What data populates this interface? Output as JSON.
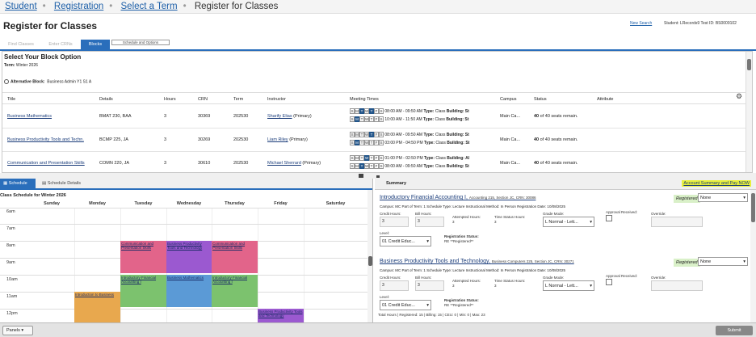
{
  "breadcrumb": {
    "items": [
      "Student",
      "Registration",
      "Select a Term",
      "Register for Classes"
    ]
  },
  "header": {
    "title": "Register for Classes",
    "new_search": "New Search",
    "student": "Student: LRecords9 Test   ID: BS0009102"
  },
  "tabs": [
    "Find Classes",
    "Enter CRNs",
    "Blocks",
    "Schedule and Options"
  ],
  "block": {
    "title": "Select Your Block Option",
    "term_label": "Term:",
    "term_value": "Winter 2026",
    "alt_label": "Alternative Block:",
    "alt_value": "Business Admin Y1 S1 A",
    "columns": [
      "Title",
      "Details",
      "Hours",
      "CRN",
      "Term",
      "Instructor",
      "Meeting Times",
      "Campus",
      "Status",
      "Attribute"
    ],
    "rows": [
      {
        "title": "Business Mathematics",
        "details": "BMAT 230, BAA",
        "hours": "3",
        "crn": "30369",
        "term": "202530",
        "instructor": "Sharify Elias",
        "role": "(Primary)",
        "m1": "08:00 AM - 09:50 AM",
        "b1": "Building: St",
        "m2": "10:00 AM - 11:50 AM",
        "b2": "Building: St",
        "campus": "Main Ca...",
        "status_num": "40",
        "status_text": " of 40 seats remain."
      },
      {
        "title": "Business Productivity Tools and Techn.",
        "details": "BCMP 225, JA",
        "hours": "3",
        "crn": "30269",
        "term": "202530",
        "instructor": "Liam Riley",
        "role": "(Primary)",
        "m1": "08:00 AM - 09:50 AM",
        "b1": "Building: St",
        "m2": "03:00 PM - 04:50 PM",
        "b2": "Building: St",
        "campus": "Main Ca...",
        "status_num": "40",
        "status_text": " of 40 seats remain."
      },
      {
        "title": "Communication and Presentation Skills",
        "details": "COMN 220, JA",
        "hours": "3",
        "crn": "30610",
        "term": "202530",
        "instructor": "Michael Sherrard",
        "role": "(Primary)",
        "m1": "01:00 PM - 02:50 PM",
        "b1": "Building: Al",
        "m2": "08:00 AM - 09:50 AM",
        "b2": "Building: St",
        "campus": "Main Ca...",
        "status_num": "40",
        "status_text": " of 40 seats remain."
      }
    ],
    "type_label": "Type:",
    "type_value": "Class",
    "days": [
      "S",
      "M",
      "T",
      "W",
      "T",
      "F",
      "S"
    ]
  },
  "schedule": {
    "tab_on": "Schedule",
    "tab_off": "Schedule Details",
    "title": "Class Schedule for Winter 2026",
    "days": [
      "Sunday",
      "Monday",
      "Tuesday",
      "Wednesday",
      "Thursday",
      "Friday",
      "Saturday"
    ],
    "hours": [
      "6am",
      "7am",
      "8am",
      "9am",
      "10am",
      "11am",
      "12pm"
    ],
    "events": {
      "comm": "Communication and Presentation Skills",
      "bpt": "Business Productivity Tools and Technology",
      "ifa": "Introductory Financial Accounting I",
      "bm": "Business Mathematics",
      "ib": "Introduction to Business"
    }
  },
  "summary": {
    "label": "Summary",
    "link": "Account Summary and Pay NOW",
    "cards": [
      {
        "title": "Introductory Financial Accounting I,",
        "sub": "Accounting 215, Section JC, CRN: 30086",
        "reg": "Registered",
        "action": "None",
        "line": "Campus: MC  Part of Term: 1  Schedule Type: Lecture  Instructional Method: In Person  Registration Date: 10/08/2025",
        "credit": "Credit Hours:",
        "bill": "Bill Hours:",
        "att": "Attempted Hours:",
        "att_v": "3",
        "tsh": "Time Status Hours:",
        "tsh_v": "3",
        "gm": "Grade Mode:",
        "gm_v": "L Normal - Lett...",
        "ar": "Approval Received:",
        "ov": "Override:",
        "level": "Level:",
        "level_v": "01 Credit Educ...",
        "rs": "Registration Status:",
        "rs_v": "RE **Registered**",
        "cv": "3",
        "bv": "3"
      },
      {
        "title": "Business Productivity Tools and Technology,",
        "sub": "Business Computers 225, Section JC, CRN: 30271",
        "reg": "Registered",
        "action": "None",
        "line": "Campus: MC  Part of Term: 1  Schedule Type: Lecture  Instructional Method: In Person  Registration Date: 10/08/2025",
        "credit": "Credit Hours:",
        "bill": "Bill Hours:",
        "att": "Attempted Hours:",
        "att_v": "3",
        "tsh": "Time Status Hours:",
        "tsh_v": "3",
        "gm": "Grade Mode:",
        "gm_v": "L Normal - Lett...",
        "ar": "Approval Received:",
        "ov": "Override:",
        "level": "Level:",
        "level_v": "01 Credit Educ...",
        "rs": "Registration Status:",
        "rs_v": "RE **Registered**",
        "cv": "3",
        "bv": "3"
      }
    ],
    "totals": "Total Hours | Registered: 15 | Billing: 15 | CEU: 0 | Min: 0 | Max: 23"
  },
  "footer": {
    "panels": "Panels",
    "submit": "Submit"
  }
}
